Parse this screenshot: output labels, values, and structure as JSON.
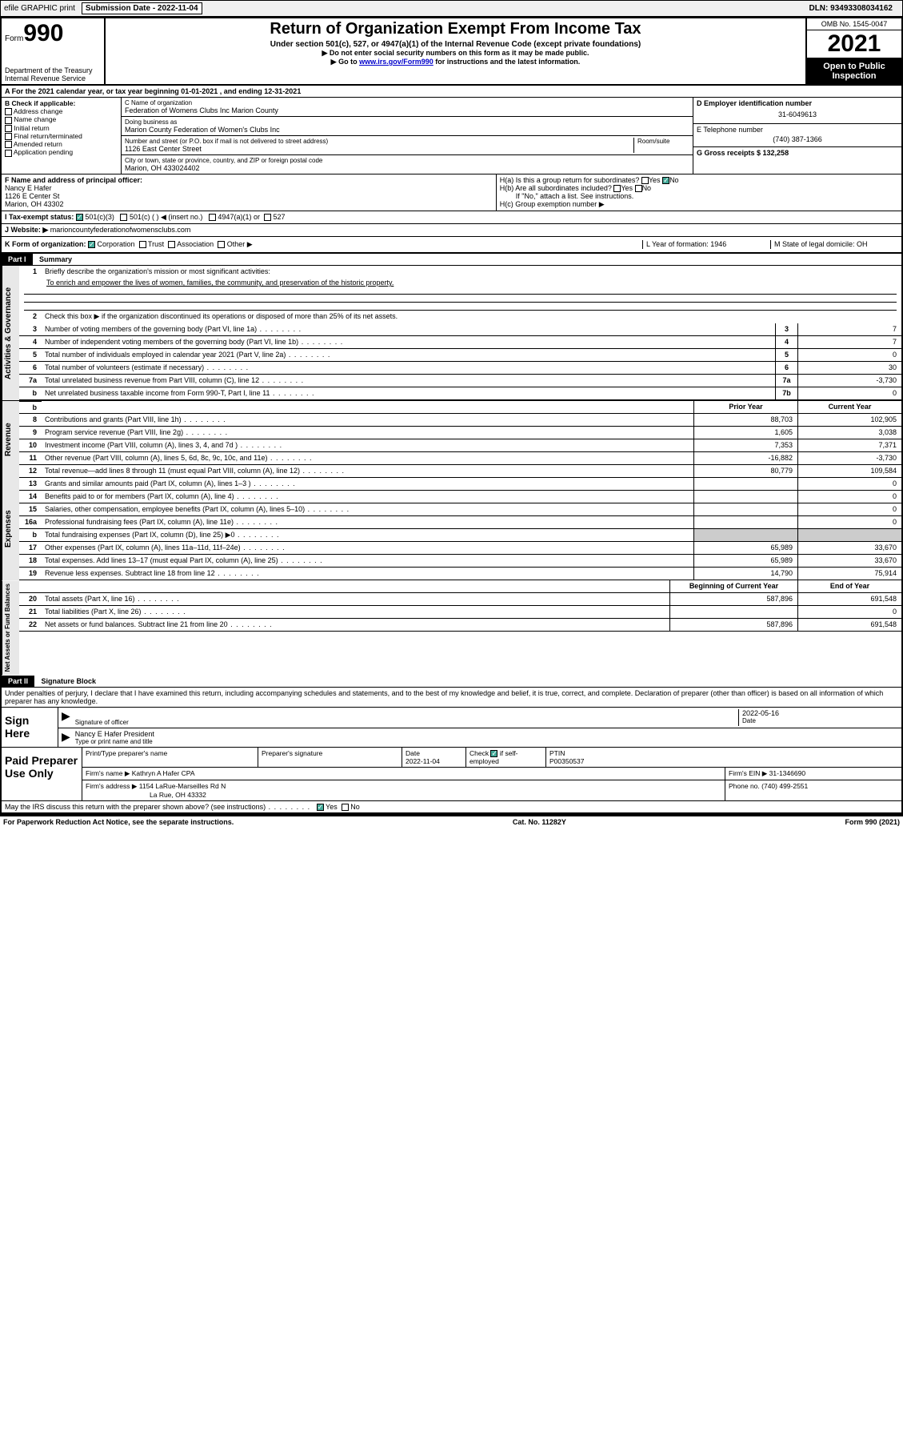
{
  "topbar": {
    "efile": "efile GRAPHIC print",
    "sub_label": "Submission Date - 2022-11-04",
    "dln": "DLN: 93493308034162"
  },
  "header": {
    "form_word": "Form",
    "form_num": "990",
    "dept": "Department of the Treasury\nInternal Revenue Service",
    "title": "Return of Organization Exempt From Income Tax",
    "sub": "Under section 501(c), 527, or 4947(a)(1) of the Internal Revenue Code (except private foundations)",
    "note1": "▶ Do not enter social security numbers on this form as it may be made public.",
    "note2a": "▶ Go to ",
    "note2link": "www.irs.gov/Form990",
    "note2b": " for instructions and the latest information.",
    "omb": "OMB No. 1545-0047",
    "year": "2021",
    "open": "Open to Public Inspection"
  },
  "lineA": "A For the 2021 calendar year, or tax year beginning 01-01-2021   , and ending 12-31-2021",
  "colB": {
    "title": "B Check if applicable:",
    "items": [
      "Address change",
      "Name change",
      "Initial return",
      "Final return/terminated",
      "Amended return",
      "Application pending"
    ]
  },
  "colC": {
    "name_label": "C Name of organization",
    "name": "Federation of Womens Clubs Inc Marion County",
    "dba_label": "Doing business as",
    "dba": "Marion County Federation of Women's Clubs Inc",
    "street_label": "Number and street (or P.O. box if mail is not delivered to street address)",
    "room_label": "Room/suite",
    "street": "1126 East Center Street",
    "city_label": "City or town, state or province, country, and ZIP or foreign postal code",
    "city": "Marion, OH  433024402"
  },
  "colDE": {
    "d_label": "D Employer identification number",
    "d_val": "31-6049613",
    "e_label": "E Telephone number",
    "e_val": "(740) 387-1366",
    "g_label": "G Gross receipts $ 132,258"
  },
  "lineF": {
    "label": "F  Name and address of principal officer:",
    "name": "Nancy E Hafer",
    "addr1": "1126 E Center St",
    "addr2": "Marion, OH  43302"
  },
  "lineH": {
    "a": "H(a)  Is this a group return for subordinates?",
    "a_yes": "Yes",
    "a_no": "No",
    "b": "H(b)  Are all subordinates included?",
    "b_note": "If \"No,\" attach a list. See instructions.",
    "c": "H(c)  Group exemption number ▶"
  },
  "lineI": {
    "label": "I    Tax-exempt status:",
    "opt1": "501(c)(3)",
    "opt2": "501(c) (  ) ◀ (insert no.)",
    "opt3": "4947(a)(1) or",
    "opt4": "527"
  },
  "lineJ": {
    "label": "J    Website: ▶",
    "val": "marioncountyfederationofwomensclubs.com"
  },
  "lineK": {
    "label": "K Form of organization:",
    "opts": [
      "Corporation",
      "Trust",
      "Association",
      "Other ▶"
    ],
    "l": "L Year of formation: 1946",
    "m": "M State of legal domicile: OH"
  },
  "part1": {
    "hdr": "Part I",
    "title": "Summary"
  },
  "summary_top": {
    "l1": "Briefly describe the organization's mission or most significant activities:",
    "mission": "To enrich and empower the lives of women, families, the community, and preservation of the historic property.",
    "l2": "Check this box ▶      if the organization discontinued its operations or disposed of more than 25% of its net assets."
  },
  "gov_rows": [
    {
      "n": "3",
      "d": "Number of voting members of the governing body (Part VI, line 1a)",
      "b": "3",
      "v": "7"
    },
    {
      "n": "4",
      "d": "Number of independent voting members of the governing body (Part VI, line 1b)",
      "b": "4",
      "v": "7"
    },
    {
      "n": "5",
      "d": "Total number of individuals employed in calendar year 2021 (Part V, line 2a)",
      "b": "5",
      "v": "0"
    },
    {
      "n": "6",
      "d": "Total number of volunteers (estimate if necessary)",
      "b": "6",
      "v": "30"
    },
    {
      "n": "7a",
      "d": "Total unrelated business revenue from Part VIII, column (C), line 12",
      "b": "7a",
      "v": "-3,730"
    },
    {
      "n": "b",
      "d": "Net unrelated business taxable income from Form 990-T, Part I, line 11",
      "b": "7b",
      "v": "0"
    }
  ],
  "col_hdrs": {
    "prior": "Prior Year",
    "curr": "Current Year"
  },
  "rev_rows": [
    {
      "n": "8",
      "d": "Contributions and grants (Part VIII, line 1h)",
      "p": "88,703",
      "c": "102,905"
    },
    {
      "n": "9",
      "d": "Program service revenue (Part VIII, line 2g)",
      "p": "1,605",
      "c": "3,038"
    },
    {
      "n": "10",
      "d": "Investment income (Part VIII, column (A), lines 3, 4, and 7d )",
      "p": "7,353",
      "c": "7,371"
    },
    {
      "n": "11",
      "d": "Other revenue (Part VIII, column (A), lines 5, 6d, 8c, 9c, 10c, and 11e)",
      "p": "-16,882",
      "c": "-3,730"
    },
    {
      "n": "12",
      "d": "Total revenue—add lines 8 through 11 (must equal Part VIII, column (A), line 12)",
      "p": "80,779",
      "c": "109,584"
    }
  ],
  "exp_rows": [
    {
      "n": "13",
      "d": "Grants and similar amounts paid (Part IX, column (A), lines 1–3 )",
      "p": "",
      "c": "0"
    },
    {
      "n": "14",
      "d": "Benefits paid to or for members (Part IX, column (A), line 4)",
      "p": "",
      "c": "0"
    },
    {
      "n": "15",
      "d": "Salaries, other compensation, employee benefits (Part IX, column (A), lines 5–10)",
      "p": "",
      "c": "0"
    },
    {
      "n": "16a",
      "d": "Professional fundraising fees (Part IX, column (A), line 11e)",
      "p": "",
      "c": "0"
    },
    {
      "n": "b",
      "d": "Total fundraising expenses (Part IX, column (D), line 25) ▶0",
      "p": "grey",
      "c": "grey"
    },
    {
      "n": "17",
      "d": "Other expenses (Part IX, column (A), lines 11a–11d, 11f–24e)",
      "p": "65,989",
      "c": "33,670"
    },
    {
      "n": "18",
      "d": "Total expenses. Add lines 13–17 (must equal Part IX, column (A), line 25)",
      "p": "65,989",
      "c": "33,670"
    },
    {
      "n": "19",
      "d": "Revenue less expenses. Subtract line 18 from line 12",
      "p": "14,790",
      "c": "75,914"
    }
  ],
  "na_hdrs": {
    "beg": "Beginning of Current Year",
    "end": "End of Year"
  },
  "na_rows": [
    {
      "n": "20",
      "d": "Total assets (Part X, line 16)",
      "p": "587,896",
      "c": "691,548"
    },
    {
      "n": "21",
      "d": "Total liabilities (Part X, line 26)",
      "p": "",
      "c": "0"
    },
    {
      "n": "22",
      "d": "Net assets or fund balances. Subtract line 21 from line 20",
      "p": "587,896",
      "c": "691,548"
    }
  ],
  "side_labels": {
    "gov": "Activities & Governance",
    "rev": "Revenue",
    "exp": "Expenses",
    "na": "Net Assets or Fund Balances"
  },
  "part2": {
    "hdr": "Part II",
    "title": "Signature Block"
  },
  "sig": {
    "decl": "Under penalties of perjury, I declare that I have examined this return, including accompanying schedules and statements, and to the best of my knowledge and belief, it is true, correct, and complete. Declaration of preparer (other than officer) is based on all information of which preparer has any knowledge.",
    "sign_here": "Sign Here",
    "sig_officer": "Signature of officer",
    "date": "Date",
    "date_val": "2022-05-16",
    "name_title": "Nancy E Hafer  President",
    "name_label": "Type or print name and title",
    "paid": "Paid Preparer Use Only",
    "col_prep": "Print/Type preparer's name",
    "col_sig": "Preparer's signature",
    "col_date": "Date",
    "col_date_val": "2022-11-04",
    "col_check": "Check          if self-employed",
    "col_ptin": "PTIN",
    "ptin_val": "P00350537",
    "firm_name_l": "Firm's name    ▶",
    "firm_name": "Kathryn A Hafer CPA",
    "firm_ein_l": "Firm's EIN ▶",
    "firm_ein": "31-1346690",
    "firm_addr_l": "Firm's address ▶",
    "firm_addr": "1154 LaRue-Marseilles Rd N",
    "firm_city": "La Rue, OH  43332",
    "firm_phone_l": "Phone no.",
    "firm_phone": "(740) 499-2551",
    "may_irs": "May the IRS discuss this return with the preparer shown above? (see instructions)",
    "yes": "Yes",
    "no": "No"
  },
  "footer": {
    "left": "For Paperwork Reduction Act Notice, see the separate instructions.",
    "mid": "Cat. No. 11282Y",
    "right": "Form 990 (2021)"
  }
}
